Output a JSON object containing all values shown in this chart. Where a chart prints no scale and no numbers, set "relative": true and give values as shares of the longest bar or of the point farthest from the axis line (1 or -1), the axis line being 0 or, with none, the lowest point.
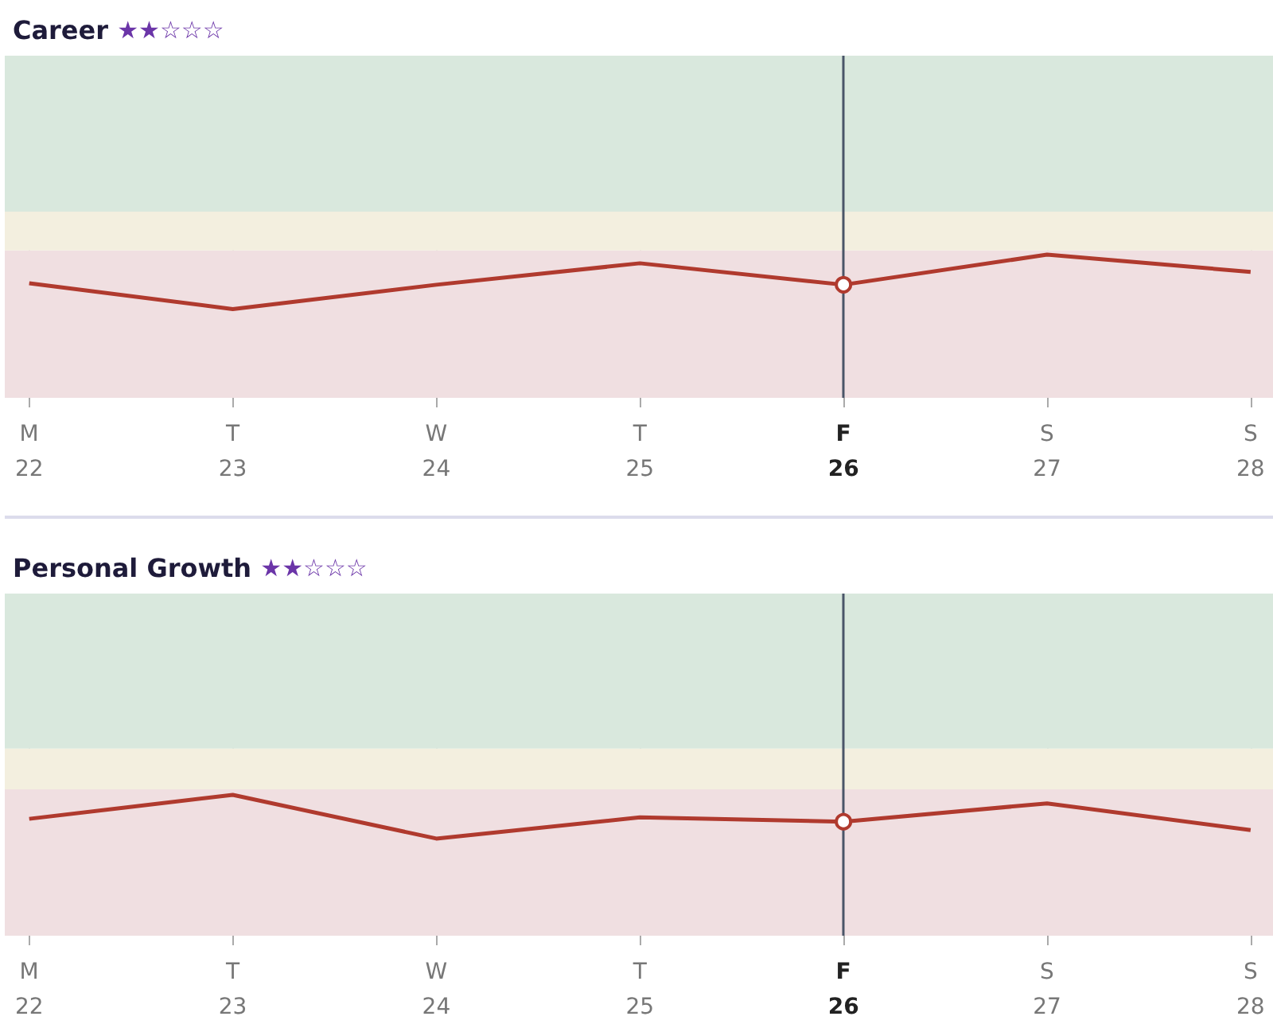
{
  "chart_data": [
    {
      "type": "line",
      "title": "Career ★★☆☆☆",
      "relative": true,
      "categories": [
        "M\n22",
        "T\n23",
        "W\n24",
        "T\n25",
        "F\n26",
        "S\n27",
        "S\n28"
      ],
      "series": [
        {
          "color": "#b03a2e",
          "values": [
            0.8,
            0.62,
            0.79,
            0.94,
            0.79,
            1,
            0.88
          ]
        }
      ],
      "bands": [
        {
          "axis": "y",
          "from": 0,
          "to": 1.03,
          "color": "#f0dfe1"
        },
        {
          "axis": "y",
          "from": 1.03,
          "to": 1.3,
          "color": "#f3efdf"
        },
        {
          "axis": "y",
          "from": 1.3,
          "to": 2.39,
          "color": "#d9e8dd"
        }
      ],
      "ref_lines": [
        {
          "axis": "x",
          "value": "F\n26",
          "color": "#4a5568"
        }
      ],
      "grid": "x"
    },
    {
      "type": "line",
      "title": "Personal Growth ★★☆☆☆",
      "relative": true,
      "categories": [
        "M\n22",
        "T\n23",
        "W\n24",
        "T\n25",
        "F\n26",
        "S\n27",
        "S\n28"
      ],
      "series": [
        {
          "color": "#b03a2e",
          "values": [
            0.83,
            1,
            0.69,
            0.84,
            0.81,
            0.94,
            0.75
          ]
        }
      ],
      "bands": [
        {
          "axis": "y",
          "from": 0,
          "to": 1.04,
          "color": "#f0dfe1"
        },
        {
          "axis": "y",
          "from": 1.04,
          "to": 1.33,
          "color": "#f3efdf"
        },
        {
          "axis": "y",
          "from": 1.33,
          "to": 2.43,
          "color": "#d9e8dd"
        }
      ],
      "ref_lines": [
        {
          "axis": "x",
          "value": "F\n26",
          "color": "#4a5568"
        }
      ],
      "grid": "x"
    }
  ]
}
